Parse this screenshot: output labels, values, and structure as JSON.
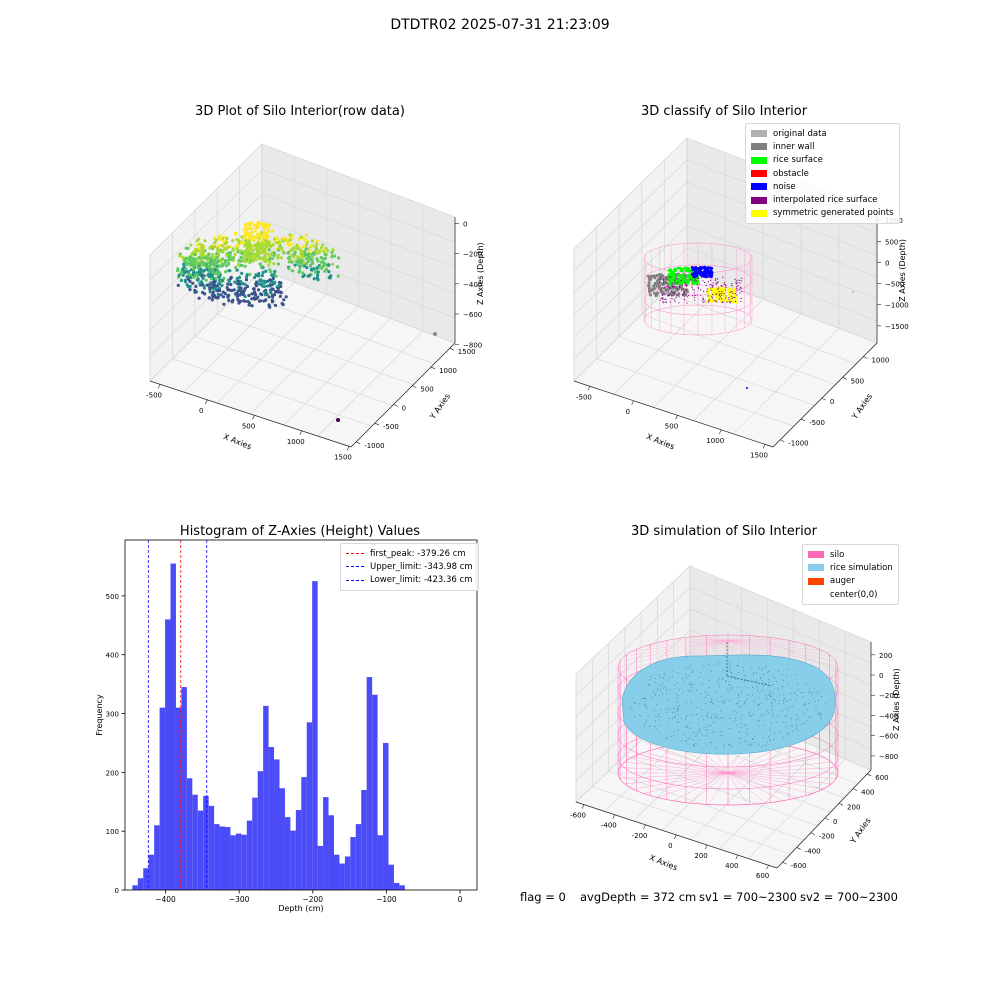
{
  "suptitle": "DTDTR02 2025-07-31 21:23:09",
  "panels": {
    "raw": {
      "title": "3D Plot of Silo Interior(row data)",
      "xlabel": "X Axies",
      "ylabel": "Y Axies",
      "zlabel": "Z Axies (Depth)",
      "xticks": [
        "-500",
        "0",
        "500",
        "1000",
        "1500"
      ],
      "yticks": [
        "-1000",
        "-500",
        "0",
        "500",
        "1000",
        "1500"
      ],
      "zticks": [
        "0",
        "−200",
        "−400",
        "−600",
        "−800"
      ]
    },
    "classify": {
      "title": "3D classify of Silo Interior",
      "xlabel": "X Axies",
      "ylabel": "Y Axies",
      "zlabel": "Z Axies (Depth)",
      "xticks": [
        "-500",
        "0",
        "500",
        "1000",
        "1500"
      ],
      "yticks": [
        "-1000",
        "-500",
        "0",
        "500",
        "1000"
      ],
      "zticks": [
        "1000",
        "500",
        "0",
        "−500",
        "−1000",
        "−1500"
      ],
      "legend": [
        {
          "label": "original data",
          "color": "#b0b0b0"
        },
        {
          "label": "inner wall",
          "color": "#808080"
        },
        {
          "label": "rice surface",
          "color": "#00ff00"
        },
        {
          "label": "obstacle",
          "color": "#ff0000"
        },
        {
          "label": "noise",
          "color": "#0000ff"
        },
        {
          "label": "interpolated rice surface",
          "color": "#800080"
        },
        {
          "label": "symmetric generated points",
          "color": "#ffff00"
        }
      ]
    },
    "histogram": {
      "title": "Histogram of Z-Axies (Height) Values",
      "xlabel": "Depth (cm)",
      "ylabel": "Frequency",
      "legend": [
        {
          "label": "first_peak: -379.26 cm",
          "color": "#ff0000"
        },
        {
          "label": "Upper_limit: -343.98 cm",
          "color": "#0000ff"
        },
        {
          "label": "Lower_limit: -423.36 cm",
          "color": "#0000ff"
        }
      ]
    },
    "simulation": {
      "title": "3D simulation of Silo Interior",
      "xlabel": "X Axies",
      "ylabel": "Y Axies",
      "zlabel": "Z Axies (Depth)",
      "xticks": [
        "-600",
        "-400",
        "-200",
        "0",
        "200",
        "400",
        "600"
      ],
      "yticks": [
        "-600",
        "-400",
        "-200",
        "0",
        "200",
        "400",
        "600"
      ],
      "zticks": [
        "200",
        "0",
        "−200",
        "−400",
        "−600",
        "−800"
      ],
      "legend": [
        {
          "label": "silo",
          "color": "#ff69b4"
        },
        {
          "label": "rice simulation",
          "color": "#87ceeb"
        },
        {
          "label": "auger",
          "color": "#ff4500"
        },
        {
          "label": "center(0,0)",
          "color": ""
        }
      ]
    }
  },
  "footer": {
    "flag": "flag = 0",
    "avg": "avgDepth = 372 cm",
    "sv1": "sv1 = 700~2300",
    "sv2": "sv2 = 700~2300"
  },
  "chart_data": [
    {
      "type": "scatter",
      "title": "3D Plot of Silo Interior(row data)",
      "xlabel": "X Axies",
      "ylabel": "Y Axies",
      "zlabel": "Z Axies (Depth)",
      "xlim": [
        -600,
        1600
      ],
      "ylim": [
        -1200,
        1600
      ],
      "zlim": [
        -900,
        50
      ],
      "grid": true
    },
    {
      "type": "scatter",
      "title": "3D classify of Silo Interior",
      "xlabel": "X Axies",
      "ylabel": "Y Axies",
      "zlabel": "Z Axies (Depth)",
      "xlim": [
        -700,
        1600
      ],
      "ylim": [
        -1200,
        1300
      ],
      "zlim": [
        -1700,
        1200
      ],
      "legend_position": "top-right",
      "grid": true
    },
    {
      "type": "bar",
      "title": "Histogram of Z-Axies (Height) Values",
      "xlabel": "Depth (cm)",
      "ylabel": "Frequency",
      "xlim": [
        -455,
        23
      ],
      "ylim": [
        0,
        595
      ],
      "xticks": [
        -400,
        -300,
        -200,
        -100,
        0
      ],
      "yticks": [
        0,
        100,
        200,
        300,
        400,
        500
      ],
      "bin_start": -445,
      "bin_width": 7.4,
      "values": [
        8,
        20,
        37,
        60,
        110,
        310,
        460,
        555,
        310,
        345,
        190,
        162,
        135,
        160,
        143,
        112,
        108,
        107,
        93,
        96,
        94,
        118,
        157,
        202,
        313,
        243,
        222,
        173,
        124,
        101,
        136,
        192,
        285,
        525,
        75,
        158,
        127,
        60,
        45,
        57,
        90,
        112,
        170,
        362,
        332,
        93,
        250,
        43,
        12,
        8
      ],
      "vlines": [
        {
          "name": "first_peak",
          "x": -379.26,
          "color": "#ff0000"
        },
        {
          "name": "Upper_limit",
          "x": -343.98,
          "color": "#0000ff"
        },
        {
          "name": "Lower_limit",
          "x": -423.36,
          "color": "#0000ff"
        }
      ],
      "legend_position": "top-right",
      "bar_color": "#4b4bf7"
    },
    {
      "type": "scatter",
      "title": "3D simulation of Silo Interior",
      "xlabel": "X Axies",
      "ylabel": "Y Axies",
      "zlabel": "Z Axies (Depth)",
      "xlim": [
        -700,
        700
      ],
      "ylim": [
        -700,
        700
      ],
      "zlim": [
        -900,
        300
      ],
      "legend_position": "top-right",
      "grid": true
    }
  ]
}
